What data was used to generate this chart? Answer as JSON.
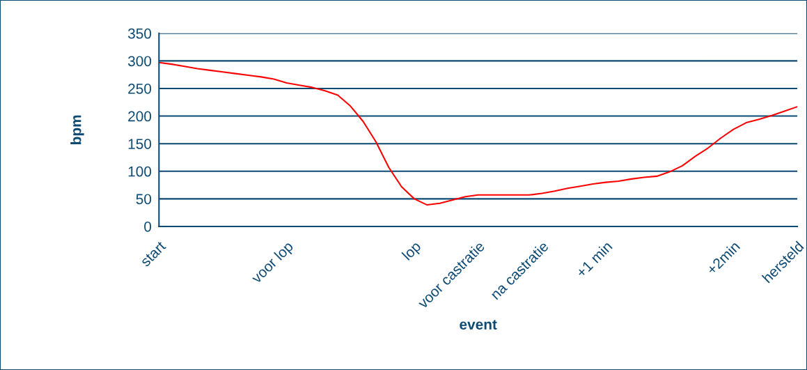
{
  "chart_data": {
    "type": "line",
    "xlabel": "event",
    "ylabel": "bpm",
    "categories": [
      "start",
      null,
      null,
      null,
      null,
      null,
      null,
      null,
      null,
      null,
      "voor lop",
      null,
      null,
      null,
      null,
      null,
      null,
      null,
      null,
      null,
      "lop",
      null,
      null,
      null,
      null,
      "voor castratie",
      null,
      null,
      null,
      null,
      "na castratie",
      null,
      null,
      null,
      null,
      "+1 min",
      null,
      null,
      null,
      null,
      null,
      null,
      null,
      null,
      null,
      "+2min",
      null,
      null,
      null,
      null,
      "hersteld"
    ],
    "series": [
      {
        "color": "#ff0000",
        "values": [
          297,
          294,
          290,
          286,
          283,
          280,
          277,
          274,
          271,
          267,
          260,
          256,
          252,
          246,
          238,
          218,
          190,
          153,
          107,
          72,
          50,
          39,
          42,
          48,
          54,
          57,
          57,
          57,
          57,
          57,
          60,
          64,
          69,
          73,
          77,
          80,
          82,
          86,
          89,
          91,
          99,
          110,
          127,
          142,
          160,
          176,
          188,
          194,
          201,
          209,
          217
        ]
      }
    ],
    "ylim": [
      0,
      350
    ],
    "yticks": [
      0,
      50,
      100,
      150,
      200,
      250,
      300,
      350
    ],
    "grid": "y",
    "marker": "none",
    "line_style": "solid"
  }
}
